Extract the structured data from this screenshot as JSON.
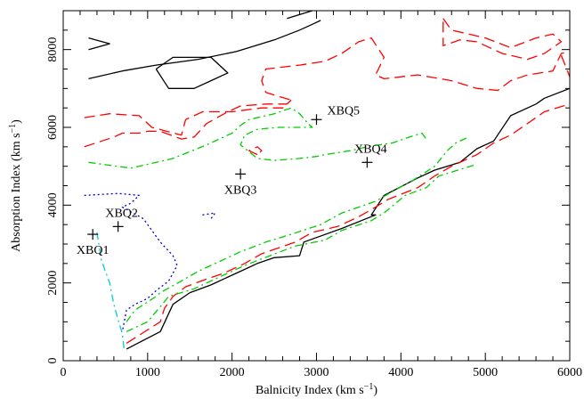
{
  "chart_data": {
    "type": "contour",
    "xlabel": "Balnicity Index (km s",
    "xlabel_sup": "−1",
    "xlabel_end": ")",
    "ylabel": "Absorption Index (km s",
    "ylabel_sup": "−1",
    "ylabel_end": ")",
    "xlim": [
      0,
      6000
    ],
    "ylim": [
      0,
      9000
    ],
    "xticks": [
      0,
      1000,
      2000,
      3000,
      4000,
      5000,
      6000
    ],
    "yticks": [
      0,
      2000,
      4000,
      6000,
      8000
    ],
    "contours": [
      {
        "color": "#000000",
        "style": "solid",
        "segments": [
          [
            [
              750,
              300
            ],
            [
              1150,
              750
            ],
            [
              1300,
              1450
            ],
            [
              1500,
              1750
            ],
            [
              1750,
              1950
            ],
            [
              1900,
              2100
            ],
            [
              2100,
              2300
            ],
            [
              2300,
              2500
            ],
            [
              2500,
              2650
            ],
            [
              2800,
              2700
            ],
            [
              2850,
              3050
            ],
            [
              3300,
              3400
            ],
            [
              3700,
              3750
            ],
            [
              3650,
              3750
            ],
            [
              3800,
              4250
            ],
            [
              4200,
              4700
            ],
            [
              4400,
              4900
            ],
            [
              4700,
              5100
            ],
            [
              4900,
              5450
            ],
            [
              5100,
              5650
            ],
            [
              5300,
              6300
            ],
            [
              5600,
              6600
            ],
            [
              5700,
              6750
            ],
            [
              6000,
              7000
            ]
          ],
          [
            [
              300,
              7250
            ],
            [
              700,
              7450
            ],
            [
              1100,
              7600
            ],
            [
              1600,
              7750
            ],
            [
              2050,
              7950
            ],
            [
              2500,
              8250
            ],
            [
              2800,
              8500
            ],
            [
              2950,
              8650
            ],
            [
              3050,
              8750
            ]
          ],
          [
            [
              2650,
              8800
            ],
            [
              2950,
              9000
            ]
          ],
          [
            [
              1100,
              7500
            ],
            [
              1250,
              7000
            ],
            [
              1550,
              7000
            ],
            [
              1750,
              7200
            ],
            [
              1950,
              7400
            ],
            [
              1750,
              7800
            ],
            [
              1300,
              7800
            ],
            [
              1100,
              7500
            ]
          ],
          [
            [
              300,
              8300
            ],
            [
              550,
              8150
            ],
            [
              300,
              8000
            ]
          ]
        ]
      },
      {
        "color": "#ff0000",
        "style": "longdash",
        "segments": [
          [
            [
              750,
              450
            ],
            [
              1150,
              1000
            ],
            [
              1200,
              1350
            ],
            [
              1300,
              1650
            ],
            [
              1450,
              1900
            ],
            [
              1700,
              2100
            ],
            [
              1900,
              2250
            ],
            [
              2150,
              2500
            ],
            [
              2350,
              2750
            ],
            [
              2550,
              2900
            ],
            [
              2750,
              3050
            ],
            [
              2950,
              3300
            ],
            [
              3250,
              3450
            ],
            [
              3500,
              3700
            ],
            [
              3700,
              3950
            ],
            [
              3850,
              4150
            ],
            [
              4200,
              4450
            ],
            [
              4400,
              4750
            ],
            [
              4600,
              5000
            ],
            [
              4900,
              5300
            ],
            [
              5100,
              5600
            ],
            [
              5300,
              5800
            ],
            [
              5500,
              6100
            ],
            [
              5700,
              6400
            ],
            [
              6000,
              6600
            ]
          ],
          [
            [
              250,
              5500
            ],
            [
              600,
              5750
            ],
            [
              700,
              5850
            ],
            [
              900,
              5850
            ],
            [
              1000,
              5900
            ],
            [
              1150,
              5900
            ],
            [
              1400,
              5700
            ],
            [
              1550,
              5750
            ],
            [
              1700,
              6100
            ],
            [
              1950,
              6400
            ],
            [
              2100,
              6550
            ],
            [
              2400,
              6600
            ],
            [
              2650,
              6600
            ],
            [
              2700,
              6700
            ],
            [
              2550,
              6800
            ],
            [
              2400,
              6900
            ],
            [
              2350,
              7200
            ],
            [
              2400,
              7500
            ],
            [
              2800,
              7600
            ],
            [
              3100,
              7700
            ],
            [
              3300,
              7900
            ],
            [
              3500,
              8200
            ],
            [
              3650,
              8300
            ],
            [
              3800,
              7800
            ],
            [
              3700,
              7350
            ],
            [
              3800,
              7250
            ],
            [
              4200,
              7350
            ],
            [
              4600,
              7200
            ],
            [
              4900,
              7000
            ],
            [
              5150,
              6950
            ],
            [
              5300,
              7200
            ],
            [
              5500,
              7350
            ],
            [
              5800,
              7450
            ],
            [
              5900,
              7900
            ],
            [
              6000,
              7950
            ]
          ],
          [
            [
              250,
              6250
            ],
            [
              550,
              6350
            ],
            [
              900,
              6300
            ],
            [
              1050,
              6000
            ],
            [
              1400,
              5800
            ],
            [
              1450,
              6200
            ],
            [
              1650,
              6400
            ],
            [
              2000,
              6400
            ],
            [
              2350,
              6500
            ],
            [
              2600,
              6500
            ],
            [
              2700,
              6700
            ]
          ],
          [
            [
              2300,
              5300
            ],
            [
              2200,
              5400
            ],
            [
              2300,
              5500
            ],
            [
              2350,
              5400
            ],
            [
              2300,
              5300
            ]
          ],
          [
            [
              5900,
              7850
            ],
            [
              6000,
              7300
            ]
          ],
          [
            [
              4500,
              8800
            ],
            [
              4600,
              8500
            ],
            [
              5000,
              8300
            ],
            [
              5300,
              8050
            ],
            [
              5600,
              8300
            ],
            [
              5800,
              8400
            ],
            [
              5900,
              8200
            ],
            [
              5700,
              7900
            ],
            [
              5500,
              7750
            ],
            [
              5200,
              7900
            ],
            [
              4900,
              8200
            ],
            [
              4700,
              8250
            ],
            [
              4500,
              8100
            ],
            [
              4500,
              8800
            ]
          ]
        ]
      },
      {
        "color": "#00cc00",
        "style": "dashdot",
        "segments": [
          [
            [
              750,
              750
            ],
            [
              1000,
              1000
            ],
            [
              1250,
              1650
            ],
            [
              1550,
              1850
            ],
            [
              1850,
              2150
            ],
            [
              2150,
              2450
            ],
            [
              2450,
              2700
            ],
            [
              2750,
              2950
            ],
            [
              3100,
              3100
            ],
            [
              3300,
              3350
            ],
            [
              3650,
              3600
            ],
            [
              3800,
              3800
            ],
            [
              4050,
              4250
            ],
            [
              4300,
              4450
            ],
            [
              4450,
              4750
            ],
            [
              4600,
              4850
            ],
            [
              4900,
              5050
            ]
          ],
          [
            [
              750,
              1000
            ],
            [
              850,
              1300
            ],
            [
              1100,
              1650
            ],
            [
              1150,
              1750
            ],
            [
              1400,
              2050
            ],
            [
              1600,
              2300
            ],
            [
              1800,
              2500
            ],
            [
              2100,
              2800
            ],
            [
              2400,
              3050
            ],
            [
              2700,
              3250
            ],
            [
              3050,
              3500
            ],
            [
              3300,
              3800
            ],
            [
              3700,
              4100
            ],
            [
              3900,
              4350
            ],
            [
              4150,
              4650
            ],
            [
              4400,
              5000
            ],
            [
              4550,
              5400
            ],
            [
              4650,
              5600
            ],
            [
              4800,
              5750
            ]
          ],
          [
            [
              300,
              5100
            ],
            [
              800,
              4950
            ],
            [
              1300,
              5200
            ],
            [
              1700,
              5550
            ],
            [
              2000,
              5850
            ],
            [
              2100,
              6050
            ],
            [
              2200,
              6200
            ],
            [
              2500,
              6350
            ],
            [
              2700,
              6500
            ],
            [
              2800,
              6350
            ],
            [
              2900,
              6100
            ],
            [
              2950,
              6000
            ],
            [
              2550,
              6000
            ],
            [
              2300,
              5950
            ],
            [
              2150,
              5800
            ],
            [
              2100,
              5550
            ],
            [
              2300,
              5200
            ],
            [
              2500,
              5150
            ],
            [
              2800,
              5200
            ],
            [
              3000,
              5250
            ],
            [
              3100,
              5300
            ],
            [
              3400,
              5400
            ],
            [
              3600,
              5500
            ],
            [
              3900,
              5600
            ],
            [
              4100,
              5750
            ],
            [
              4250,
              5850
            ],
            [
              4300,
              5700
            ]
          ]
        ]
      },
      {
        "color": "#0000cc",
        "style": "dotted",
        "segments": [
          [
            [
              250,
              4250
            ],
            [
              650,
              4300
            ],
            [
              900,
              4250
            ],
            [
              800,
              4050
            ],
            [
              700,
              3950
            ],
            [
              950,
              3650
            ],
            [
              1050,
              3350
            ],
            [
              1150,
              3050
            ],
            [
              1300,
              2700
            ],
            [
              1350,
              2450
            ],
            [
              1250,
              2050
            ],
            [
              1100,
              1800
            ],
            [
              1000,
              1600
            ],
            [
              850,
              1450
            ],
            [
              750,
              1300
            ],
            [
              700,
              750
            ]
          ],
          [
            [
              1650,
              3750
            ],
            [
              1800,
              3800
            ],
            [
              1750,
              3650
            ]
          ]
        ]
      },
      {
        "color": "#00cccc",
        "style": "dashdot",
        "segments": [
          [
            [
              400,
              3300
            ],
            [
              450,
              2600
            ],
            [
              550,
              2000
            ],
            [
              600,
              1450
            ],
            [
              650,
              1050
            ],
            [
              700,
              700
            ],
            [
              720,
              300
            ]
          ]
        ]
      }
    ],
    "points": [
      {
        "label": "XBQ1",
        "x": 350,
        "y": 3250,
        "label_pos": "below"
      },
      {
        "label": "XBQ2",
        "x": 650,
        "y": 3450,
        "label_pos": "above"
      },
      {
        "label": "XBQ3",
        "x": 2100,
        "y": 4800,
        "label_pos": "below"
      },
      {
        "label": "XBQ4",
        "x": 3600,
        "y": 5100,
        "label_pos": "above"
      },
      {
        "label": "XBQ5",
        "x": 3000,
        "y": 6200,
        "label_pos": "right"
      }
    ]
  }
}
